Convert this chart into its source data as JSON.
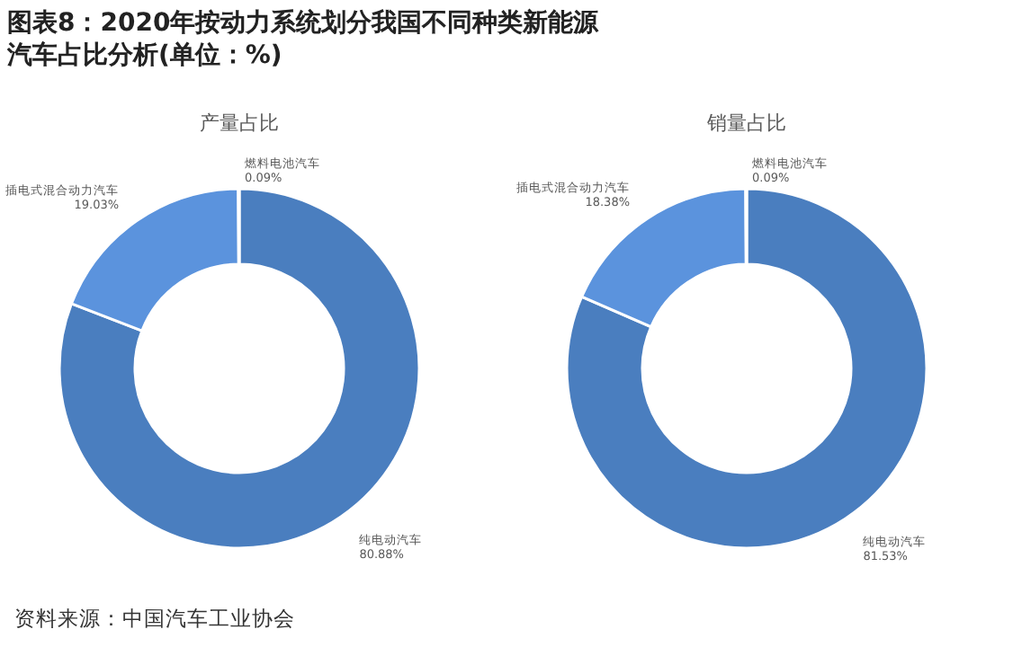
{
  "chart_data": [
    {
      "type": "donut",
      "title": "产量占比",
      "annotations": [
        "图表8：2020年按动力系统划分我国不同种类新能源汽车占比分析(单位：%)",
        "资料来源：中国汽车工业协会"
      ],
      "categories": [
        "纯电动汽车",
        "插电式混合动力汽车",
        "燃料电池汽车"
      ],
      "values": [
        80.88,
        19.03,
        0.09
      ],
      "value_labels": [
        "80.88%",
        "19.03%",
        "0.09%"
      ],
      "colors": [
        "#4a7ebf",
        "#5b93dd",
        "#8fb4e8"
      ]
    },
    {
      "type": "donut",
      "title": "销量占比",
      "categories": [
        "纯电动汽车",
        "插电式混合动力汽车",
        "燃料电池汽车"
      ],
      "values": [
        81.53,
        18.38,
        0.09
      ],
      "value_labels": [
        "81.53%",
        "18.38%",
        "0.09%"
      ],
      "colors": [
        "#4a7ebf",
        "#5b93dd",
        "#8fb4e8"
      ]
    }
  ]
}
